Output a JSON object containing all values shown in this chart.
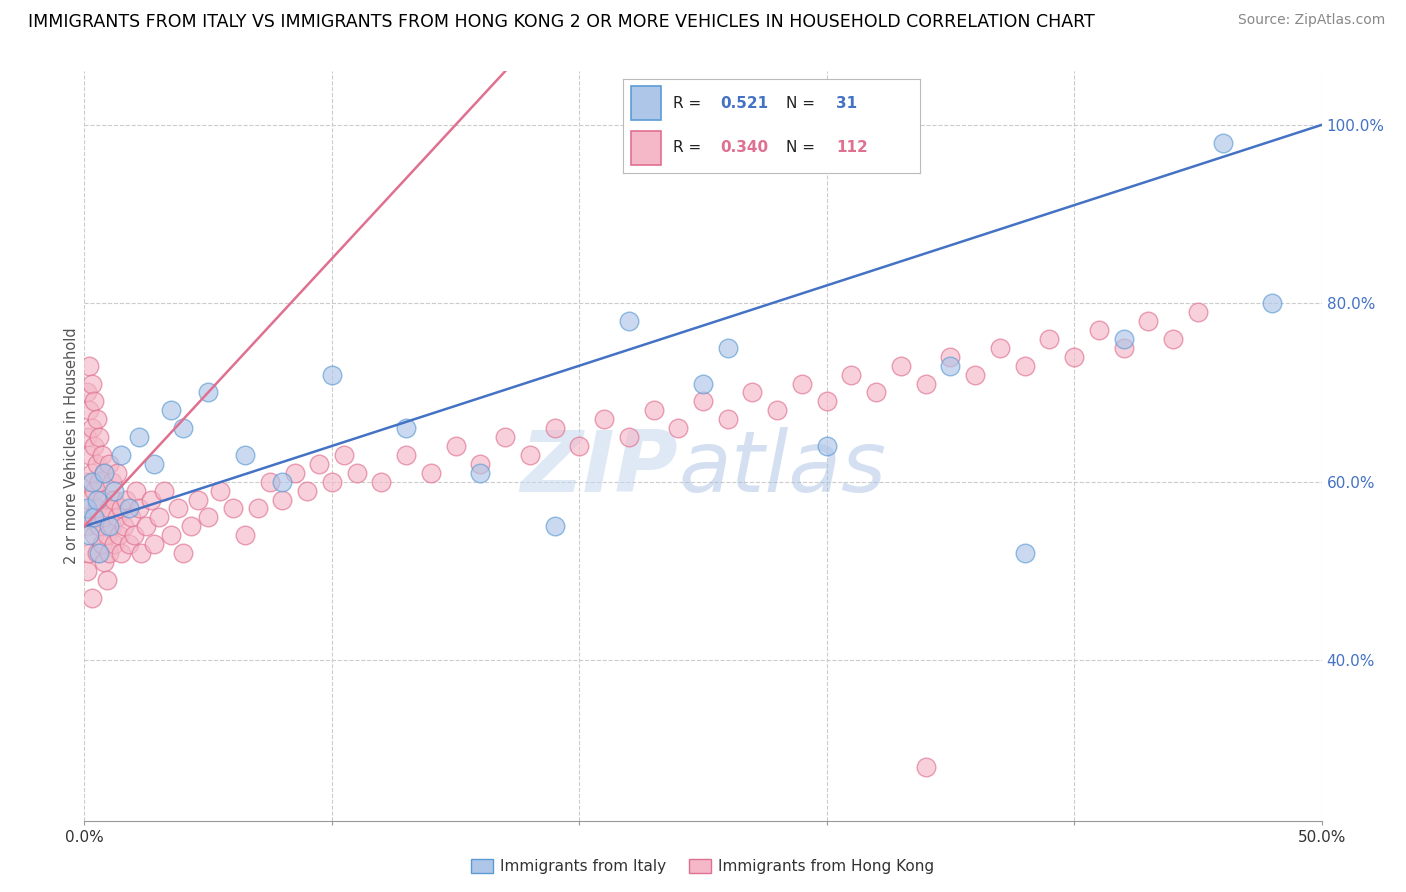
{
  "title": "IMMIGRANTS FROM ITALY VS IMMIGRANTS FROM HONG KONG 2 OR MORE VEHICLES IN HOUSEHOLD CORRELATION CHART",
  "source": "Source: ZipAtlas.com",
  "ylabel": "2 or more Vehicles in Household",
  "x_min": 0.0,
  "x_max": 0.5,
  "y_min": 0.22,
  "y_max": 1.06,
  "italy_color": "#aec6e8",
  "italy_edge_color": "#5b9bd5",
  "hk_color": "#f4b8c8",
  "hk_edge_color": "#e07090",
  "italy_R": 0.521,
  "italy_N": 31,
  "hk_R": 0.34,
  "hk_N": 112,
  "italy_line_color": "#4472c4",
  "hk_line_color": "#e07090",
  "r_n_label_color_blue": "#4472c4",
  "r_n_label_color_pink": "#e07090",
  "legend_italy_label": "Immigrants from Italy",
  "legend_hk_label": "Immigrants from Hong Kong",
  "watermark_zip": "ZIP",
  "watermark_atlas": "atlas",
  "title_fontsize": 12.5,
  "source_fontsize": 10,
  "scatter_size": 180,
  "scatter_alpha": 0.65,
  "italy_scatter_x": [
    0.001,
    0.002,
    0.003,
    0.004,
    0.005,
    0.006,
    0.008,
    0.01,
    0.012,
    0.015,
    0.018,
    0.022,
    0.028,
    0.035,
    0.04,
    0.05,
    0.065,
    0.08,
    0.1,
    0.13,
    0.16,
    0.19,
    0.22,
    0.26,
    0.3,
    0.35,
    0.38,
    0.42,
    0.46,
    0.48,
    0.25
  ],
  "italy_scatter_y": [
    0.57,
    0.54,
    0.6,
    0.56,
    0.58,
    0.52,
    0.61,
    0.55,
    0.59,
    0.63,
    0.57,
    0.65,
    0.62,
    0.68,
    0.66,
    0.7,
    0.63,
    0.6,
    0.72,
    0.66,
    0.61,
    0.55,
    0.78,
    0.75,
    0.64,
    0.73,
    0.52,
    0.76,
    0.98,
    0.8,
    0.71
  ],
  "hk_scatter_x": [
    0.001,
    0.001,
    0.001,
    0.001,
    0.001,
    0.002,
    0.002,
    0.002,
    0.002,
    0.002,
    0.003,
    0.003,
    0.003,
    0.003,
    0.003,
    0.004,
    0.004,
    0.004,
    0.004,
    0.005,
    0.005,
    0.005,
    0.005,
    0.006,
    0.006,
    0.006,
    0.007,
    0.007,
    0.007,
    0.008,
    0.008,
    0.008,
    0.009,
    0.009,
    0.01,
    0.01,
    0.01,
    0.011,
    0.011,
    0.012,
    0.012,
    0.013,
    0.013,
    0.014,
    0.015,
    0.015,
    0.016,
    0.017,
    0.018,
    0.019,
    0.02,
    0.021,
    0.022,
    0.023,
    0.025,
    0.027,
    0.028,
    0.03,
    0.032,
    0.035,
    0.038,
    0.04,
    0.043,
    0.046,
    0.05,
    0.055,
    0.06,
    0.065,
    0.07,
    0.075,
    0.08,
    0.085,
    0.09,
    0.095,
    0.1,
    0.105,
    0.11,
    0.12,
    0.13,
    0.14,
    0.15,
    0.16,
    0.17,
    0.18,
    0.19,
    0.2,
    0.21,
    0.22,
    0.23,
    0.24,
    0.25,
    0.26,
    0.27,
    0.28,
    0.29,
    0.3,
    0.31,
    0.32,
    0.33,
    0.34,
    0.35,
    0.36,
    0.37,
    0.38,
    0.39,
    0.4,
    0.41,
    0.42,
    0.43,
    0.44,
    0.45,
    0.34
  ],
  "hk_scatter_y": [
    0.6,
    0.55,
    0.65,
    0.7,
    0.5,
    0.58,
    0.63,
    0.68,
    0.52,
    0.73,
    0.56,
    0.61,
    0.66,
    0.47,
    0.71,
    0.54,
    0.59,
    0.64,
    0.69,
    0.57,
    0.62,
    0.67,
    0.52,
    0.55,
    0.6,
    0.65,
    0.53,
    0.58,
    0.63,
    0.51,
    0.56,
    0.61,
    0.49,
    0.54,
    0.52,
    0.57,
    0.62,
    0.55,
    0.6,
    0.53,
    0.58,
    0.56,
    0.61,
    0.54,
    0.52,
    0.57,
    0.55,
    0.58,
    0.53,
    0.56,
    0.54,
    0.59,
    0.57,
    0.52,
    0.55,
    0.58,
    0.53,
    0.56,
    0.59,
    0.54,
    0.57,
    0.52,
    0.55,
    0.58,
    0.56,
    0.59,
    0.57,
    0.54,
    0.57,
    0.6,
    0.58,
    0.61,
    0.59,
    0.62,
    0.6,
    0.63,
    0.61,
    0.6,
    0.63,
    0.61,
    0.64,
    0.62,
    0.65,
    0.63,
    0.66,
    0.64,
    0.67,
    0.65,
    0.68,
    0.66,
    0.69,
    0.67,
    0.7,
    0.68,
    0.71,
    0.69,
    0.72,
    0.7,
    0.73,
    0.71,
    0.74,
    0.72,
    0.75,
    0.73,
    0.76,
    0.74,
    0.77,
    0.75,
    0.78,
    0.76,
    0.79,
    0.28
  ]
}
